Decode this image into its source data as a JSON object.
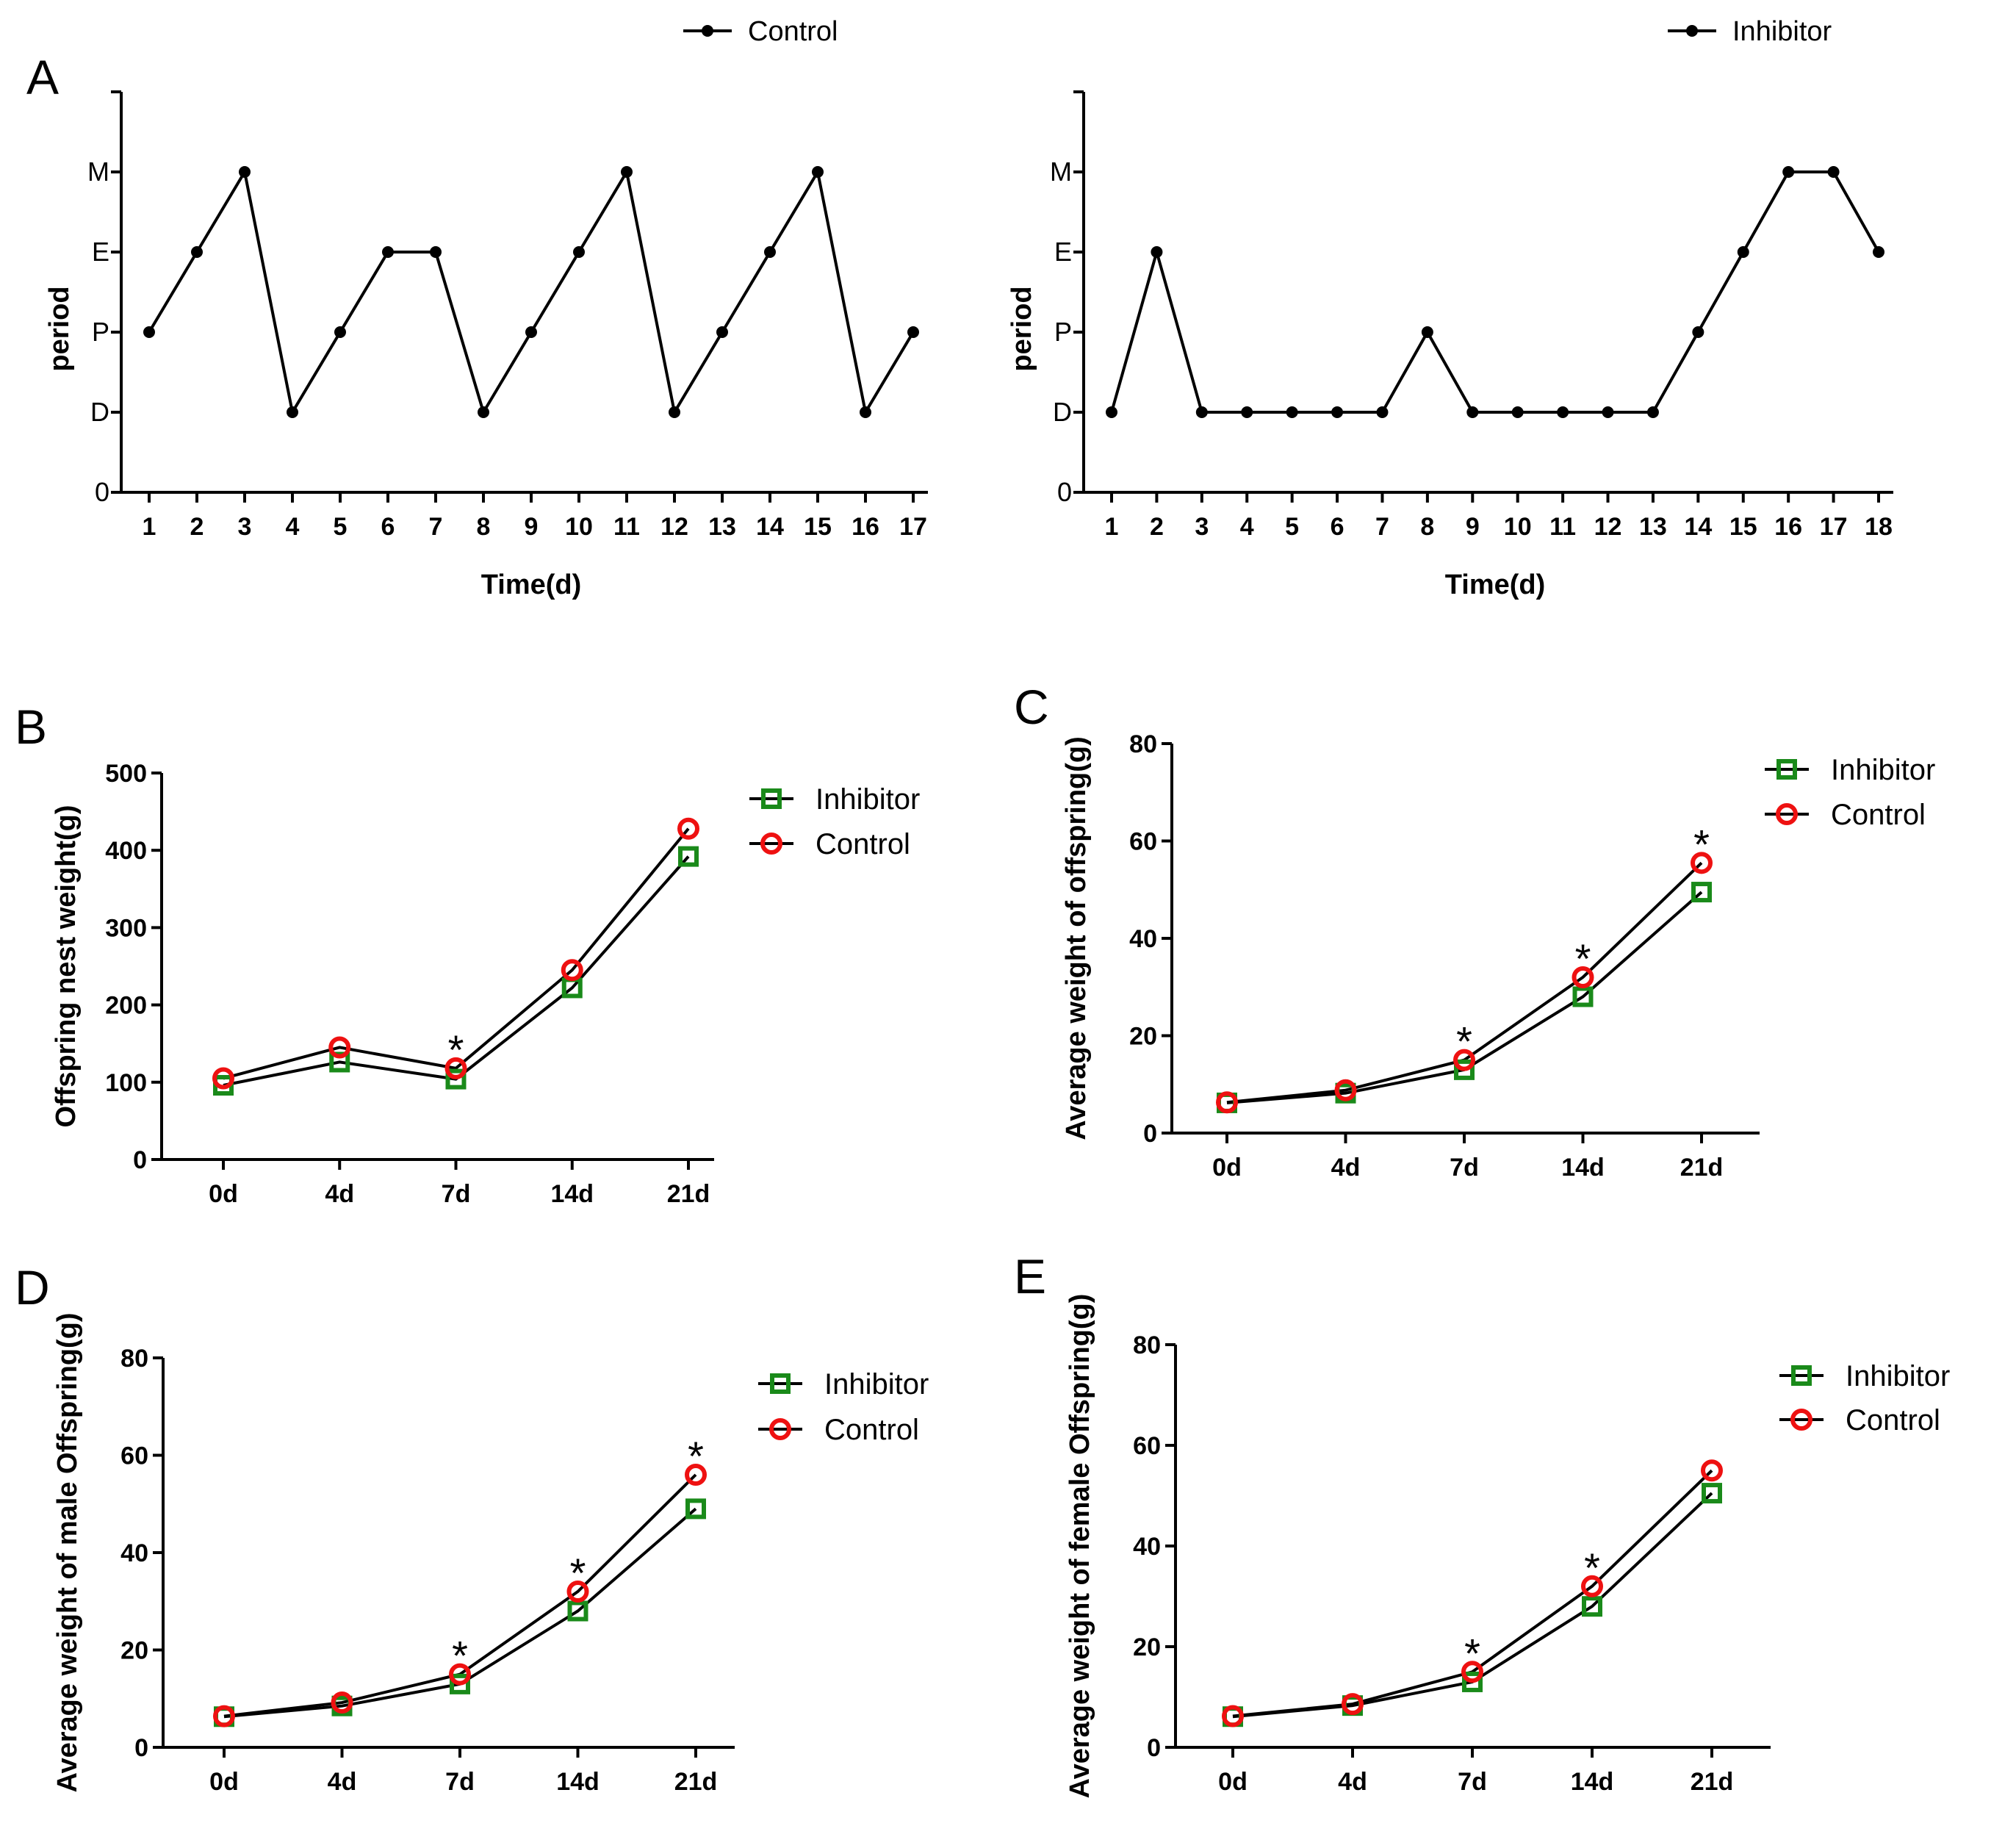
{
  "figure": {
    "panel_letters": [
      "A",
      "B",
      "C",
      "D",
      "E"
    ]
  },
  "colors": {
    "inhibitor": "#1a8a1a",
    "control": "#ee1111",
    "line": "#000000"
  },
  "chart_data": [
    {
      "id": "A1",
      "type": "line",
      "panel": "A",
      "title": "",
      "legend": [
        "Control"
      ],
      "xlabel": "Time(d)",
      "ylabel": "period",
      "y_categories": [
        "0",
        "D",
        "P",
        "E",
        "M"
      ],
      "x": [
        1,
        2,
        3,
        4,
        5,
        6,
        7,
        8,
        9,
        10,
        11,
        12,
        13,
        14,
        15,
        16,
        17
      ],
      "series": [
        {
          "name": "Control",
          "values": [
            "P",
            "E",
            "M",
            "D",
            "P",
            "E",
            "E",
            "D",
            "P",
            "E",
            "M",
            "D",
            "P",
            "E",
            "M",
            "D",
            "P"
          ]
        }
      ]
    },
    {
      "id": "A2",
      "type": "line",
      "panel": "A",
      "title": "",
      "legend": [
        "Inhibitor"
      ],
      "xlabel": "Time(d)",
      "ylabel": "period",
      "y_categories": [
        "0",
        "D",
        "P",
        "E",
        "M"
      ],
      "x": [
        1,
        2,
        3,
        4,
        5,
        6,
        7,
        8,
        9,
        10,
        11,
        12,
        13,
        14,
        15,
        16,
        17,
        18
      ],
      "series": [
        {
          "name": "Inhibitor",
          "values": [
            "D",
            "E",
            "D",
            "D",
            "D",
            "D",
            "D",
            "P",
            "D",
            "D",
            "D",
            "D",
            "D",
            "P",
            "E",
            "M",
            "M",
            "E"
          ]
        }
      ]
    },
    {
      "id": "B",
      "type": "line",
      "panel": "B",
      "title": "",
      "xlabel": "",
      "ylabel": "Offspring nest weight(g)",
      "categories": [
        "0d",
        "4d",
        "7d",
        "14d",
        "21d"
      ],
      "ylim": [
        0,
        500
      ],
      "yticks": [
        0,
        100,
        200,
        300,
        400,
        500
      ],
      "legend_position": "top-right",
      "series": [
        {
          "name": "Inhibitor",
          "values": [
            96,
            126,
            104,
            222,
            392
          ]
        },
        {
          "name": "Control",
          "values": [
            105,
            145,
            118,
            245,
            428
          ]
        }
      ],
      "significance": [
        "",
        "",
        "*",
        "",
        ""
      ]
    },
    {
      "id": "C",
      "type": "line",
      "panel": "C",
      "title": "",
      "xlabel": "",
      "ylabel": "Average weight of offspring(g)",
      "categories": [
        "0d",
        "4d",
        "7d",
        "14d",
        "21d"
      ],
      "ylim": [
        0,
        80
      ],
      "yticks": [
        0,
        20,
        40,
        60,
        80
      ],
      "legend_position": "top-right",
      "series": [
        {
          "name": "Inhibitor",
          "values": [
            6.2,
            8.2,
            13,
            28,
            49.5
          ]
        },
        {
          "name": "Control",
          "values": [
            6.3,
            8.8,
            15,
            32,
            55.5
          ]
        }
      ],
      "significance": [
        "",
        "",
        "*",
        "*",
        "*"
      ]
    },
    {
      "id": "D",
      "type": "line",
      "panel": "D",
      "title": "",
      "xlabel": "",
      "ylabel": "Average weight of male Offspring(g)",
      "categories": [
        "0d",
        "4d",
        "7d",
        "14d",
        "21d"
      ],
      "ylim": [
        0,
        80
      ],
      "yticks": [
        0,
        20,
        40,
        60,
        80
      ],
      "legend_position": "top-right",
      "series": [
        {
          "name": "Inhibitor",
          "values": [
            6.3,
            8.5,
            13,
            28,
            49
          ]
        },
        {
          "name": "Control",
          "values": [
            6.4,
            9.2,
            15,
            32,
            56
          ]
        }
      ],
      "significance": [
        "",
        "",
        "*",
        "*",
        "*"
      ]
    },
    {
      "id": "E",
      "type": "line",
      "panel": "E",
      "title": "",
      "xlabel": "",
      "ylabel": "Average weight of female Offspring(g)",
      "categories": [
        "0d",
        "4d",
        "7d",
        "14d",
        "21d"
      ],
      "ylim": [
        0,
        80
      ],
      "yticks": [
        0,
        20,
        40,
        60,
        80
      ],
      "legend_position": "top-right",
      "series": [
        {
          "name": "Inhibitor",
          "values": [
            6.1,
            8.3,
            13,
            28,
            50.5
          ]
        },
        {
          "name": "Control",
          "values": [
            6.2,
            8.6,
            15,
            32,
            55
          ]
        }
      ],
      "significance": [
        "",
        "",
        "*",
        "*",
        ""
      ]
    }
  ]
}
